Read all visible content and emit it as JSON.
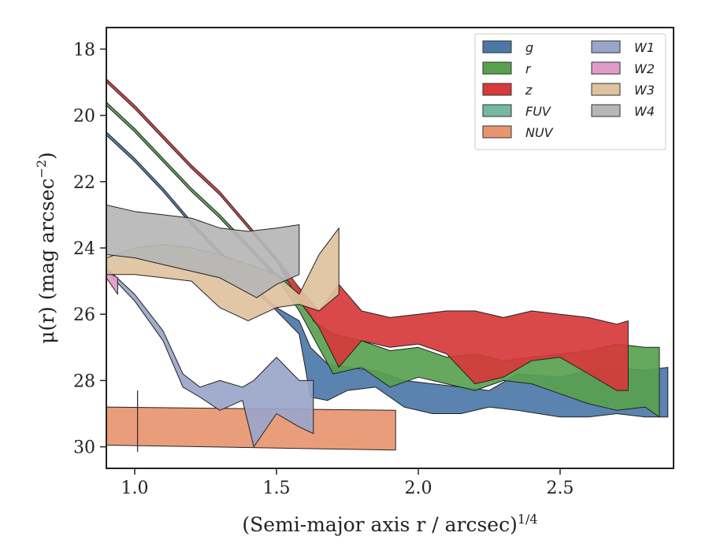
{
  "chart_data": {
    "type": "area",
    "xlabel": "(Semi-major axis r / arcsec)",
    "xlabel_italic_letter": "r",
    "xlabel_superscript": "1/4",
    "ylabel": "μ(r) (mag arcsec",
    "ylabel_superscript": "−2",
    "ylabel_tail": ")",
    "xlim": [
      0.9,
      2.9
    ],
    "ylim": [
      30.65,
      17.35
    ],
    "y_inverted": true,
    "xticks": [
      1.0,
      1.5,
      2.0,
      2.5
    ],
    "xtick_labels": [
      "1.0",
      "1.5",
      "2.0",
      "2.5"
    ],
    "yticks": [
      18,
      20,
      22,
      24,
      26,
      28,
      30
    ],
    "ytick_labels": [
      "18",
      "20",
      "22",
      "24",
      "26",
      "28",
      "30"
    ],
    "legend_position": "top-right",
    "legend_columns": 2,
    "series": [
      {
        "name": "g",
        "color": "#4c78a8",
        "upper": [
          [
            0.9,
            20.5
          ],
          [
            1.0,
            21.3
          ],
          [
            1.1,
            22.2
          ],
          [
            1.2,
            23.2
          ],
          [
            1.3,
            24.1
          ],
          [
            1.4,
            25.0
          ],
          [
            1.5,
            25.8
          ],
          [
            1.58,
            26.2
          ],
          [
            1.62,
            27.0
          ],
          [
            1.68,
            27.5
          ],
          [
            1.75,
            27.6
          ],
          [
            1.85,
            27.7
          ],
          [
            1.95,
            28.0
          ],
          [
            2.05,
            28.1
          ],
          [
            2.15,
            28.2
          ],
          [
            2.25,
            28.3
          ],
          [
            2.35,
            27.8
          ],
          [
            2.5,
            27.9
          ],
          [
            2.6,
            27.7
          ],
          [
            2.7,
            27.6
          ],
          [
            2.8,
            27.7
          ],
          [
            2.88,
            27.6
          ]
        ],
        "lower": [
          [
            0.9,
            20.6
          ],
          [
            1.0,
            21.4
          ],
          [
            1.1,
            22.3
          ],
          [
            1.2,
            23.3
          ],
          [
            1.3,
            24.2
          ],
          [
            1.4,
            25.1
          ],
          [
            1.5,
            25.9
          ],
          [
            1.58,
            26.6
          ],
          [
            1.62,
            28.5
          ],
          [
            1.68,
            28.6
          ],
          [
            1.75,
            28.3
          ],
          [
            1.85,
            28.2
          ],
          [
            1.95,
            28.8
          ],
          [
            2.05,
            29.0
          ],
          [
            2.15,
            29.0
          ],
          [
            2.25,
            28.8
          ],
          [
            2.35,
            28.9
          ],
          [
            2.5,
            29.1
          ],
          [
            2.6,
            29.1
          ],
          [
            2.7,
            29.0
          ],
          [
            2.8,
            29.1
          ],
          [
            2.88,
            29.1
          ]
        ]
      },
      {
        "name": "r",
        "color": "#59a14f",
        "upper": [
          [
            0.9,
            19.6
          ],
          [
            1.0,
            20.4
          ],
          [
            1.1,
            21.3
          ],
          [
            1.2,
            22.2
          ],
          [
            1.3,
            23.0
          ],
          [
            1.4,
            23.9
          ],
          [
            1.5,
            24.8
          ],
          [
            1.58,
            25.2
          ],
          [
            1.63,
            26.2
          ],
          [
            1.7,
            26.6
          ],
          [
            1.8,
            26.8
          ],
          [
            1.9,
            27.1
          ],
          [
            2.0,
            27.0
          ],
          [
            2.1,
            27.3
          ],
          [
            2.2,
            27.2
          ],
          [
            2.3,
            27.4
          ],
          [
            2.4,
            27.3
          ],
          [
            2.5,
            27.2
          ],
          [
            2.6,
            27.1
          ],
          [
            2.7,
            26.9
          ],
          [
            2.8,
            27.0
          ],
          [
            2.85,
            27.0
          ]
        ],
        "lower": [
          [
            0.9,
            19.7
          ],
          [
            1.0,
            20.5
          ],
          [
            1.1,
            21.4
          ],
          [
            1.2,
            22.3
          ],
          [
            1.3,
            23.1
          ],
          [
            1.4,
            24.0
          ],
          [
            1.5,
            24.9
          ],
          [
            1.58,
            25.9
          ],
          [
            1.63,
            26.7
          ],
          [
            1.7,
            27.8
          ],
          [
            1.8,
            27.6
          ],
          [
            1.9,
            28.2
          ],
          [
            2.0,
            27.9
          ],
          [
            2.1,
            28.1
          ],
          [
            2.2,
            28.3
          ],
          [
            2.3,
            28.0
          ],
          [
            2.4,
            28.1
          ],
          [
            2.5,
            28.4
          ],
          [
            2.6,
            28.7
          ],
          [
            2.7,
            28.9
          ],
          [
            2.8,
            28.8
          ],
          [
            2.85,
            29.1
          ]
        ]
      },
      {
        "name": "z",
        "color": "#d63a3a",
        "upper": [
          [
            0.9,
            18.9
          ],
          [
            1.0,
            19.7
          ],
          [
            1.1,
            20.6
          ],
          [
            1.2,
            21.5
          ],
          [
            1.3,
            22.3
          ],
          [
            1.4,
            23.3
          ],
          [
            1.5,
            24.3
          ],
          [
            1.58,
            25.2
          ],
          [
            1.65,
            25.9
          ],
          [
            1.72,
            25.1
          ],
          [
            1.8,
            25.9
          ],
          [
            1.9,
            26.1
          ],
          [
            2.0,
            26.0
          ],
          [
            2.1,
            25.9
          ],
          [
            2.2,
            25.9
          ],
          [
            2.3,
            26.1
          ],
          [
            2.4,
            25.9
          ],
          [
            2.5,
            26.0
          ],
          [
            2.6,
            26.1
          ],
          [
            2.7,
            26.3
          ],
          [
            2.74,
            26.2
          ]
        ],
        "lower": [
          [
            0.9,
            19.0
          ],
          [
            1.0,
            19.8
          ],
          [
            1.1,
            20.7
          ],
          [
            1.2,
            21.6
          ],
          [
            1.3,
            22.4
          ],
          [
            1.4,
            23.4
          ],
          [
            1.5,
            24.4
          ],
          [
            1.58,
            25.6
          ],
          [
            1.65,
            26.4
          ],
          [
            1.72,
            27.6
          ],
          [
            1.8,
            26.8
          ],
          [
            1.9,
            27.0
          ],
          [
            2.0,
            26.9
          ],
          [
            2.1,
            27.2
          ],
          [
            2.2,
            28.1
          ],
          [
            2.3,
            27.9
          ],
          [
            2.4,
            27.4
          ],
          [
            2.5,
            27.3
          ],
          [
            2.6,
            27.8
          ],
          [
            2.7,
            28.3
          ],
          [
            2.74,
            28.3
          ]
        ]
      },
      {
        "name": "FUV",
        "color": "#76b7a0",
        "upper": [],
        "lower": []
      },
      {
        "name": "NUV",
        "color": "#e8956f",
        "upper": [
          [
            0.9,
            28.8
          ],
          [
            1.92,
            28.9
          ]
        ],
        "lower": [
          [
            0.9,
            29.95
          ],
          [
            1.92,
            30.1
          ]
        ]
      },
      {
        "name": "W1",
        "color": "#9aa5c9",
        "upper": [
          [
            0.9,
            24.6
          ],
          [
            1.0,
            25.4
          ],
          [
            1.1,
            26.5
          ],
          [
            1.17,
            27.8
          ],
          [
            1.23,
            28.2
          ],
          [
            1.3,
            28.0
          ],
          [
            1.38,
            28.2
          ],
          [
            1.42,
            28.0
          ],
          [
            1.5,
            27.3
          ],
          [
            1.58,
            28.0
          ],
          [
            1.63,
            28.0
          ]
        ],
        "lower": [
          [
            0.9,
            24.7
          ],
          [
            1.0,
            25.6
          ],
          [
            1.1,
            26.8
          ],
          [
            1.17,
            28.2
          ],
          [
            1.23,
            28.5
          ],
          [
            1.3,
            28.9
          ],
          [
            1.38,
            28.6
          ],
          [
            1.42,
            30.0
          ],
          [
            1.5,
            29.0
          ],
          [
            1.58,
            29.4
          ],
          [
            1.63,
            29.6
          ]
        ]
      },
      {
        "name": "W2",
        "color": "#de9cc8",
        "upper": [
          [
            0.9,
            24.7
          ],
          [
            0.94,
            24.9
          ]
        ],
        "lower": [
          [
            0.9,
            24.9
          ],
          [
            0.94,
            25.4
          ]
        ]
      },
      {
        "name": "W3",
        "color": "#dfc29e",
        "upper": [
          [
            0.9,
            24.3
          ],
          [
            1.0,
            24.0
          ],
          [
            1.1,
            23.9
          ],
          [
            1.2,
            24.0
          ],
          [
            1.3,
            24.2
          ],
          [
            1.4,
            24.5
          ],
          [
            1.5,
            24.8
          ],
          [
            1.58,
            25.4
          ],
          [
            1.65,
            24.2
          ],
          [
            1.72,
            23.4
          ]
        ],
        "lower": [
          [
            0.9,
            24.8
          ],
          [
            1.0,
            24.8
          ],
          [
            1.1,
            24.9
          ],
          [
            1.2,
            25.0
          ],
          [
            1.3,
            25.8
          ],
          [
            1.4,
            26.2
          ],
          [
            1.5,
            25.8
          ],
          [
            1.58,
            25.7
          ],
          [
            1.65,
            25.9
          ],
          [
            1.72,
            25.4
          ]
        ]
      },
      {
        "name": "W4",
        "color": "#b6b6b6",
        "upper": [
          [
            0.9,
            22.7
          ],
          [
            1.0,
            22.9
          ],
          [
            1.1,
            23.0
          ],
          [
            1.2,
            23.1
          ],
          [
            1.3,
            23.4
          ],
          [
            1.4,
            23.5
          ],
          [
            1.5,
            23.4
          ],
          [
            1.58,
            23.3
          ]
        ],
        "lower": [
          [
            0.9,
            24.2
          ],
          [
            1.0,
            24.3
          ],
          [
            1.1,
            24.5
          ],
          [
            1.2,
            24.7
          ],
          [
            1.3,
            24.9
          ],
          [
            1.43,
            25.5
          ],
          [
            1.5,
            25.1
          ],
          [
            1.58,
            24.8
          ]
        ]
      }
    ],
    "annotations": [
      {
        "type": "vertical-error-bar",
        "x": 1.01,
        "y_top": 28.3,
        "y_bottom": 30.15
      }
    ]
  }
}
